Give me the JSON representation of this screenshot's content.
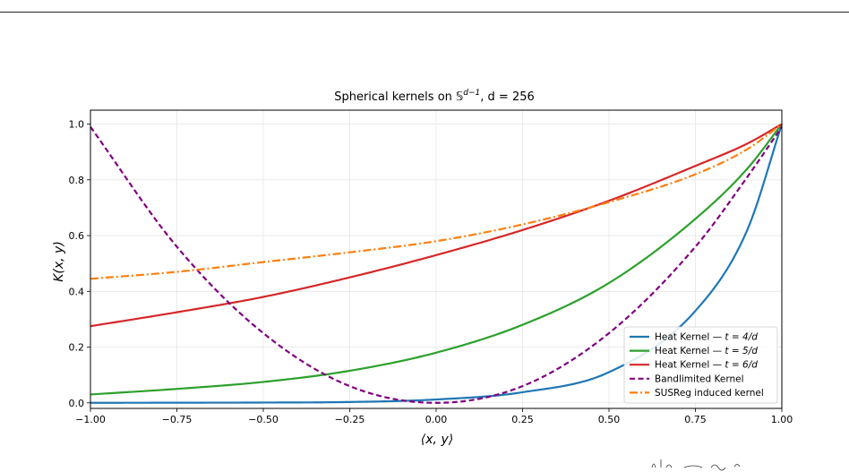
{
  "chart_data": {
    "type": "line",
    "title_parts": {
      "prefix": "Spherical kernels on ",
      "space": "𝕊",
      "superscript": "d−1",
      "suffix": ", d = 256"
    },
    "xlabel": "⟨x, y⟩",
    "ylabel": "K(x, y)",
    "xlim": [
      -1.0,
      1.0
    ],
    "ylim": [
      -0.02,
      1.05
    ],
    "xticks": [
      -1.0,
      -0.75,
      -0.5,
      -0.25,
      0.0,
      0.25,
      0.5,
      0.75,
      1.0
    ],
    "xtick_labels": [
      "−1.00",
      "−0.75",
      "−0.50",
      "−0.25",
      "0.00",
      "0.25",
      "0.50",
      "0.75",
      "1.00"
    ],
    "yticks": [
      0.0,
      0.2,
      0.4,
      0.6,
      0.8,
      1.0
    ],
    "ytick_labels": [
      "0.0",
      "0.2",
      "0.4",
      "0.6",
      "0.8",
      "1.0"
    ],
    "grid": true,
    "legend_position": "lower-right",
    "x": [
      -1.0,
      -0.75,
      -0.5,
      -0.25,
      0.0,
      0.25,
      0.5,
      0.75,
      0.9,
      1.0
    ],
    "series": [
      {
        "name": "Heat Kernel — t = 4/d",
        "color": "#1f77b4",
        "dash": "solid",
        "values": [
          0.0,
          0.0005,
          0.001,
          0.003,
          0.012,
          0.038,
          0.11,
          0.33,
          0.62,
          1.0
        ]
      },
      {
        "name": "Heat Kernel — t = 5/d",
        "color": "#2ca02c",
        "dash": "solid",
        "values": [
          0.03,
          0.05,
          0.075,
          0.115,
          0.18,
          0.28,
          0.43,
          0.66,
          0.84,
          1.0
        ]
      },
      {
        "name": "Heat Kernel — t = 6/d",
        "color": "#d62728",
        "dash": "solid",
        "values": [
          0.275,
          0.325,
          0.38,
          0.45,
          0.53,
          0.62,
          0.725,
          0.85,
          0.93,
          1.0
        ]
      },
      {
        "name": "Bandlimited Kernel",
        "color": "#800080",
        "dash": "dashed",
        "values": [
          0.99,
          0.56,
          0.25,
          0.06,
          0.0,
          0.06,
          0.25,
          0.56,
          0.81,
          0.99
        ]
      },
      {
        "name": "SUSReg induced kernel",
        "color": "#ff7f0e",
        "dash": "dashdot",
        "values": [
          0.445,
          0.47,
          0.505,
          0.54,
          0.58,
          0.64,
          0.72,
          0.82,
          0.91,
          1.0
        ]
      }
    ],
    "legend_labels": [
      {
        "text": "Heat Kernel — ",
        "math": "t = 4/d"
      },
      {
        "text": "Heat Kernel — ",
        "math": "t = 5/d"
      },
      {
        "text": "Heat Kernel — ",
        "math": "t = 6/d"
      },
      {
        "text": "Bandlimited Kernel",
        "math": ""
      },
      {
        "text": "SUSReg induced kernel",
        "math": ""
      }
    ]
  }
}
